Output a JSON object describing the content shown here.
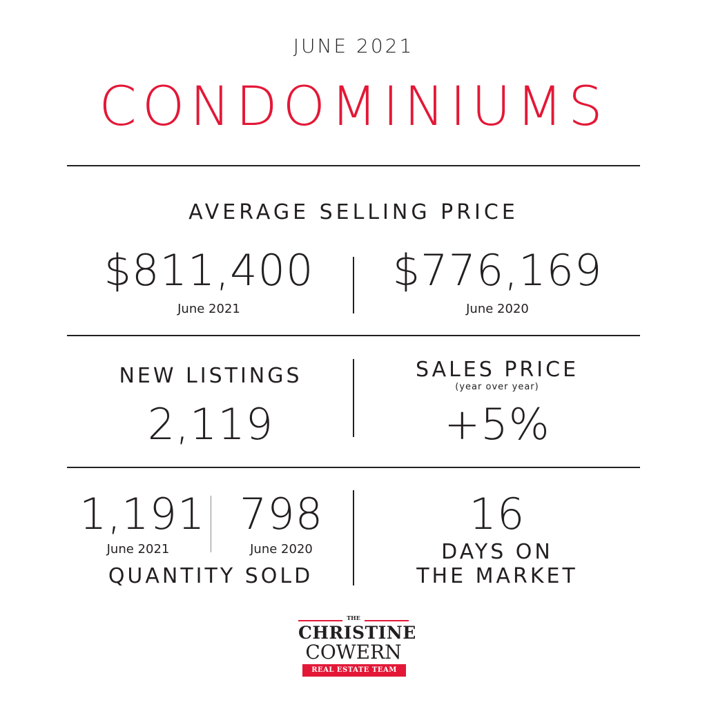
{
  "header": {
    "month": "JUNE 2021",
    "title": "CONDOMINIUMS"
  },
  "average_selling_price": {
    "label": "AVERAGE SELLING PRICE",
    "current": {
      "value": "$811,400",
      "period": "June 2021"
    },
    "previous": {
      "value": "$776,169",
      "period": "June 2020"
    }
  },
  "new_listings": {
    "label": "NEW LISTINGS",
    "value": "2,119"
  },
  "sales_price": {
    "label": "SALES PRICE",
    "sublabel": "(year over year)",
    "value": "+5%"
  },
  "quantity_sold": {
    "current": {
      "value": "1,191",
      "period": "June 2021"
    },
    "previous": {
      "value": "798",
      "period": "June 2020"
    },
    "label": "QUANTITY SOLD"
  },
  "days_on_market": {
    "value": "16",
    "label_line1": "DAYS ON",
    "label_line2": "THE MARKET"
  },
  "logo": {
    "the": "THE",
    "name_line1": "CHRISTINE",
    "name_line2": "COWERN",
    "tagline": "REAL ESTATE TEAM"
  },
  "colors": {
    "accent": "#e31837",
    "text": "#231f20",
    "background": "#ffffff"
  }
}
